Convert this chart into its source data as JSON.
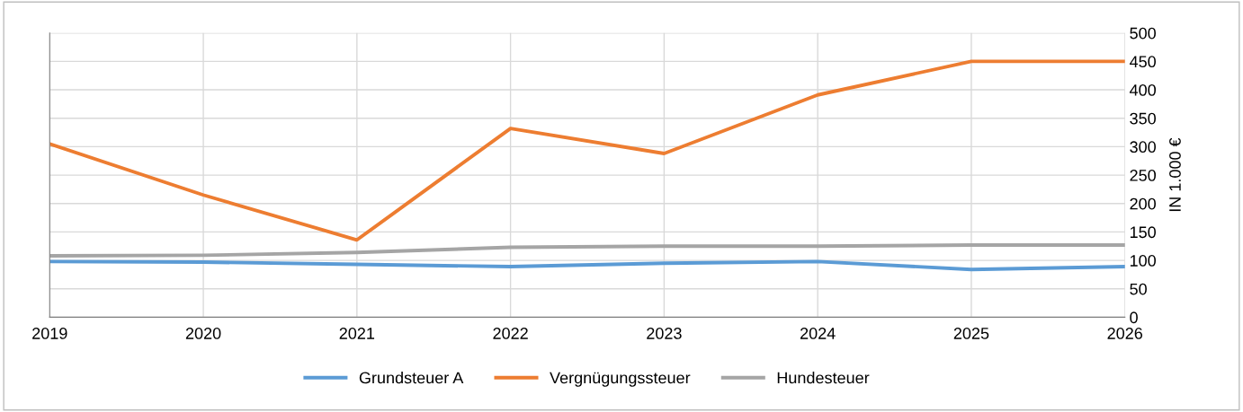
{
  "chart_data": {
    "type": "line",
    "ylabel": "IN 1.000 €",
    "x": [
      2019,
      2020,
      2021,
      2022,
      2023,
      2024,
      2025,
      2026
    ],
    "xlim": [
      2019,
      2026
    ],
    "xticks": [
      2019,
      2020,
      2021,
      2022,
      2023,
      2024,
      2025,
      2026
    ],
    "ylim": [
      0,
      500
    ],
    "yticks": [
      0,
      50,
      100,
      150,
      200,
      250,
      300,
      350,
      400,
      450,
      500
    ],
    "grid": true,
    "legend": "bottom",
    "marker": "none",
    "line_style": "solid",
    "series": [
      {
        "name": "Grundsteuer A",
        "color": "#5b9bd5",
        "values": [
          98,
          97,
          93,
          89,
          95,
          98,
          84,
          89
        ]
      },
      {
        "name": "Vergnügungssteuer",
        "color": "#ed7d31",
        "values": [
          305,
          215,
          136,
          332,
          288,
          391,
          450,
          450
        ]
      },
      {
        "name": "Hundesteuer",
        "color": "#a5a5a5",
        "values": [
          108,
          109,
          114,
          123,
          125,
          125,
          127,
          127
        ]
      }
    ]
  }
}
